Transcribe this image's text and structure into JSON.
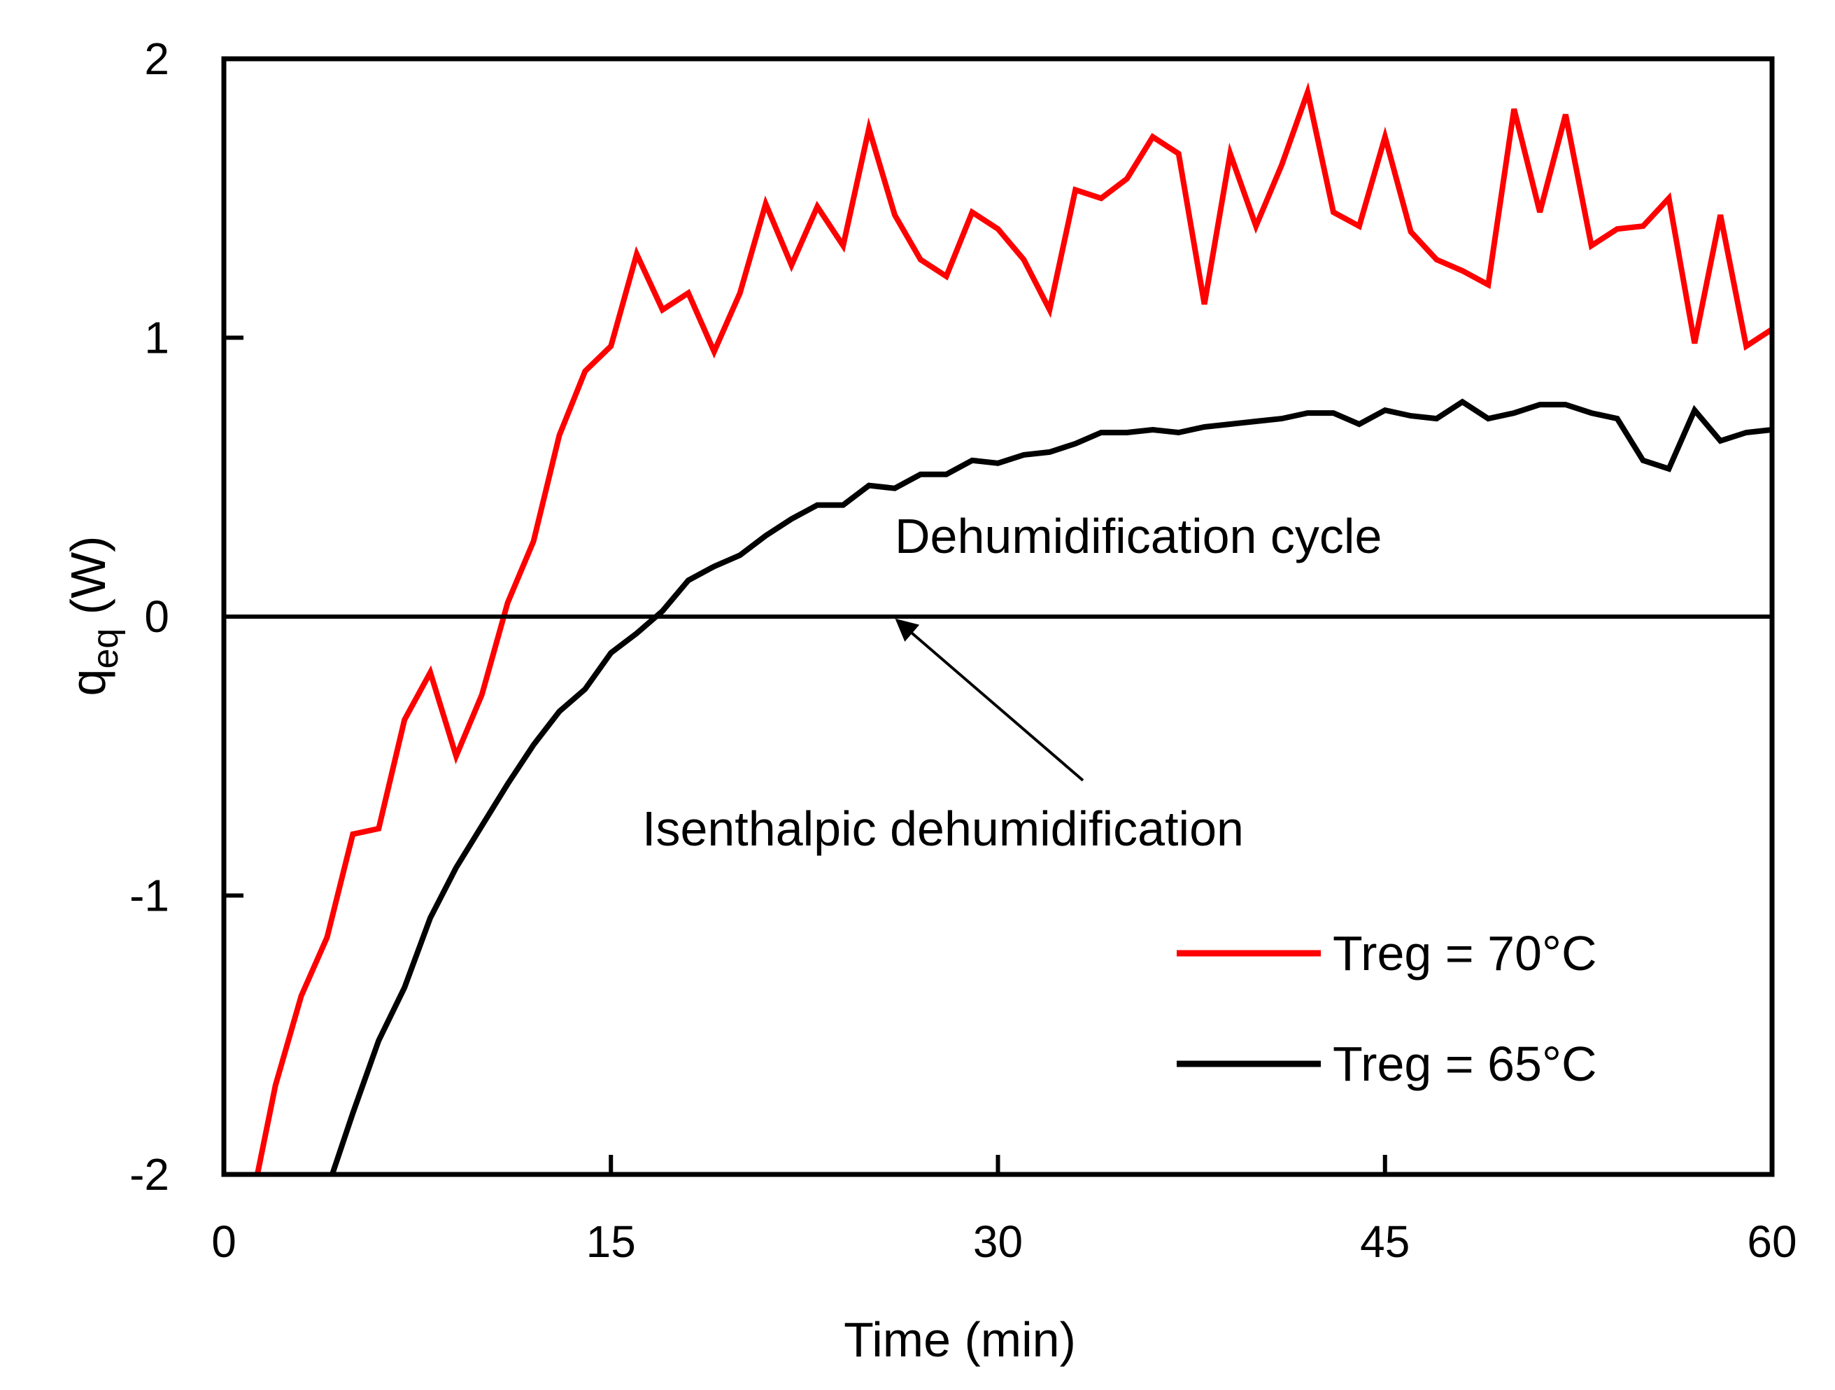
{
  "chart_data": {
    "type": "line",
    "title": "",
    "xlabel": "Time (min)",
    "ylabel_main": "q",
    "ylabel_sub": "eq",
    "ylabel_unit": " (W)",
    "xlim": [
      0,
      60
    ],
    "ylim": [
      -2,
      2
    ],
    "xticks": [
      0,
      15,
      30,
      45,
      60
    ],
    "yticks": [
      -2,
      -1,
      0,
      1,
      2
    ],
    "x_tick_labels": [
      "0",
      "15",
      "30",
      "45",
      "60"
    ],
    "y_tick_labels": [
      "-2",
      "-1",
      "0",
      "1",
      "2"
    ],
    "grid": false,
    "legend_position": "bottom-right",
    "series": [
      {
        "name": "Treg = 70°C",
        "color": "#ff0000",
        "x": [
          1.3,
          2,
          3,
          4,
          5,
          6,
          7,
          8,
          9,
          10,
          11,
          12,
          13,
          14,
          15,
          16,
          17,
          18,
          19,
          20,
          21,
          22,
          23,
          24,
          25,
          26,
          27,
          28,
          29,
          30,
          31,
          32,
          33,
          34,
          35,
          36,
          37,
          38,
          39,
          40,
          41,
          42,
          43,
          44,
          45,
          46,
          47,
          48,
          49,
          50,
          51,
          52,
          53,
          54,
          55,
          56,
          57,
          58,
          59,
          60
        ],
        "values": [
          -2.0,
          -1.68,
          -1.36,
          -1.15,
          -0.78,
          -0.76,
          -0.37,
          -0.2,
          -0.5,
          -0.28,
          0.05,
          0.27,
          0.65,
          0.88,
          0.97,
          1.3,
          1.1,
          1.16,
          0.95,
          1.16,
          1.48,
          1.26,
          1.47,
          1.33,
          1.75,
          1.44,
          1.28,
          1.22,
          1.45,
          1.39,
          1.28,
          1.1,
          1.53,
          1.5,
          1.57,
          1.72,
          1.66,
          1.12,
          1.66,
          1.4,
          1.62,
          1.88,
          1.45,
          1.4,
          1.72,
          1.38,
          1.28,
          1.24,
          1.19,
          1.82,
          1.45,
          1.8,
          1.33,
          1.39,
          1.4,
          1.5,
          0.98,
          1.44,
          0.97,
          1.03
        ]
      },
      {
        "name": "Treg = 65°C",
        "color": "#000000",
        "x": [
          4.2,
          5,
          6,
          7,
          8,
          9,
          10,
          11,
          12,
          13,
          14,
          15,
          16,
          17,
          18,
          19,
          20,
          21,
          22,
          23,
          24,
          25,
          26,
          27,
          28,
          29,
          30,
          31,
          32,
          33,
          34,
          35,
          36,
          37,
          38,
          39,
          40,
          41,
          42,
          43,
          44,
          45,
          46,
          47,
          48,
          49,
          50,
          51,
          52,
          53,
          54,
          55,
          56,
          57,
          58,
          59,
          60
        ],
        "values": [
          -2.0,
          -1.78,
          -1.52,
          -1.33,
          -1.08,
          -0.9,
          -0.75,
          -0.6,
          -0.46,
          -0.34,
          -0.26,
          -0.13,
          -0.06,
          0.02,
          0.13,
          0.18,
          0.22,
          0.29,
          0.35,
          0.4,
          0.4,
          0.47,
          0.46,
          0.51,
          0.51,
          0.56,
          0.55,
          0.58,
          0.59,
          0.62,
          0.66,
          0.66,
          0.67,
          0.66,
          0.68,
          0.69,
          0.7,
          0.71,
          0.73,
          0.73,
          0.69,
          0.74,
          0.72,
          0.71,
          0.77,
          0.71,
          0.73,
          0.76,
          0.76,
          0.73,
          0.71,
          0.56,
          0.53,
          0.74,
          0.63,
          0.66,
          0.67
        ]
      },
      {
        "name": "Isenthalpic dehumidification",
        "color": "#000000",
        "x": [
          0,
          60
        ],
        "values": [
          0,
          0
        ],
        "legend": false
      }
    ],
    "annotations": [
      {
        "text": "Dehumidification cycle",
        "x": 38.3,
        "y": 0.25
      },
      {
        "text": "Isenthalpic dehumidification",
        "x": 30.5,
        "y": -0.75,
        "arrow_to": [
          25.8,
          0
        ]
      }
    ]
  }
}
